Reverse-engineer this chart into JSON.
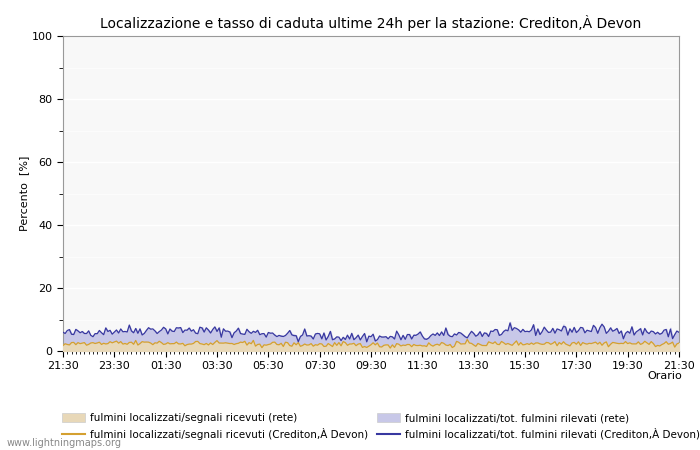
{
  "title": "Localizzazione e tasso di caduta ultime 24h per la stazione: Crediton,À Devon",
  "ylabel": "Percento  [%]",
  "xlabel": "Orario",
  "xlabels": [
    "21:30",
    "23:30",
    "01:30",
    "03:30",
    "05:30",
    "07:30",
    "09:30",
    "11:30",
    "13:30",
    "15:30",
    "17:30",
    "19:30",
    "21:30"
  ],
  "yticks": [
    0,
    20,
    40,
    60,
    80,
    100
  ],
  "yminor": [
    10,
    30,
    50,
    70,
    90
  ],
  "ylim": [
    0,
    100
  ],
  "background_color": "#ffffff",
  "plot_bg_color": "#f8f8f8",
  "grid_color": "#ffffff",
  "fill_blue_color": "#c8c8e8",
  "fill_tan_color": "#e8d8b8",
  "line_orange_color": "#d4a030",
  "line_blue_color": "#3838a0",
  "legend_labels": [
    "fulmini localizzati/segnali ricevuti (rete)",
    "fulmini localizzati/segnali ricevuti (Crediton,À Devon)",
    "fulmini localizzati/tot. fulmini rilevati (rete)",
    "fulmini localizzati/tot. fulmini rilevati (Crediton,À Devon)"
  ],
  "watermark": "www.lightningmaps.org",
  "n_points": 289
}
